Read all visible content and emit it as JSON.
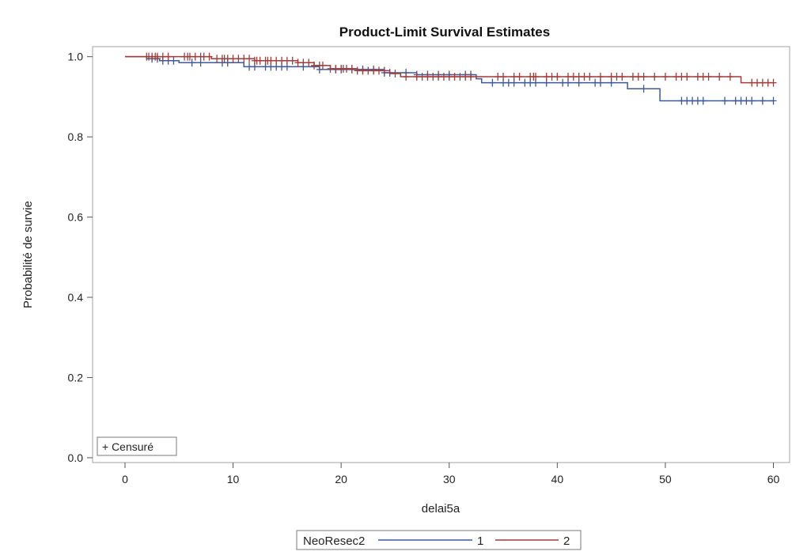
{
  "chart_data": {
    "type": "line",
    "title": "Product-Limit Survival Estimates",
    "xlabel": "delai5a",
    "ylabel": "Probabilité de survie",
    "xlim": [
      -3,
      61.5
    ],
    "ylim": [
      -0.012,
      1.025
    ],
    "x_ticks": [
      "0",
      "10",
      "20",
      "30",
      "40",
      "50",
      "60"
    ],
    "y_ticks": [
      "0.0",
      "0.2",
      "0.4",
      "0.6",
      "0.8",
      "1.0"
    ],
    "censored_legend": "+ Censuré",
    "legend_title": "NeoResec2",
    "legend_placement": "bottom",
    "series": [
      {
        "name": "1",
        "color": "#3c5a9a",
        "steps": [
          [
            0,
            1.0
          ],
          [
            2.0,
            0.995
          ],
          [
            3.2,
            0.99
          ],
          [
            5.0,
            0.985
          ],
          [
            11.0,
            0.975
          ],
          [
            18.0,
            0.968
          ],
          [
            24.0,
            0.96
          ],
          [
            27.0,
            0.955
          ],
          [
            32.5,
            0.945
          ],
          [
            33.0,
            0.935
          ],
          [
            46.5,
            0.92
          ],
          [
            49.5,
            0.89
          ],
          [
            60,
            0.89
          ]
        ],
        "censored": [
          2.5,
          3.0,
          3.5,
          4.0,
          4.5,
          6.2,
          7.0,
          9.0,
          9.5,
          11.5,
          12.0,
          13.0,
          13.5,
          14.0,
          14.5,
          15.0,
          16.5,
          18.0,
          19.5,
          20.0,
          21.0,
          22.0,
          23.0,
          24.0,
          24.5,
          26.0,
          27.0,
          28.0,
          29.0,
          30.0,
          31.5,
          32.0,
          34.0,
          35.0,
          35.5,
          36.0,
          37.0,
          37.5,
          38.0,
          39.0,
          40.5,
          41.0,
          42.0,
          43.5,
          44.0,
          45.0,
          48.0,
          51.5,
          52.0,
          52.5,
          53.0,
          53.5,
          55.5,
          56.5,
          57.0,
          57.5,
          58.0,
          59.0,
          60.0
        ]
      },
      {
        "name": "2",
        "color": "#a13c38",
        "steps": [
          [
            0,
            1.0
          ],
          [
            8.0,
            0.995
          ],
          [
            12.0,
            0.99
          ],
          [
            16.0,
            0.985
          ],
          [
            17.5,
            0.978
          ],
          [
            19.0,
            0.97
          ],
          [
            21.5,
            0.965
          ],
          [
            24.5,
            0.958
          ],
          [
            25.5,
            0.95
          ],
          [
            57.0,
            0.935
          ],
          [
            60,
            0.935
          ]
        ],
        "censored": [
          2.0,
          2.2,
          2.5,
          2.8,
          3.0,
          3.5,
          4.0,
          5.5,
          5.8,
          6.0,
          6.5,
          7.0,
          7.3,
          7.8,
          8.5,
          9.0,
          9.2,
          9.5,
          10.0,
          10.5,
          11.0,
          11.5,
          12.0,
          12.2,
          12.5,
          13.0,
          13.2,
          13.5,
          14.0,
          14.5,
          15.0,
          15.5,
          16.0,
          16.5,
          17.0,
          17.5,
          18.0,
          18.3,
          19.0,
          19.5,
          20.0,
          20.2,
          20.5,
          21.0,
          21.5,
          22.0,
          22.5,
          23.0,
          23.5,
          24.0,
          25.0,
          26.0,
          27.0,
          27.5,
          28.0,
          28.5,
          29.0,
          29.5,
          30.0,
          30.5,
          31.0,
          31.5,
          32.0,
          34.5,
          35.0,
          36.0,
          36.5,
          37.5,
          37.8,
          38.0,
          39.0,
          39.5,
          40.0,
          41.0,
          41.5,
          42.0,
          42.5,
          43.0,
          44.0,
          45.0,
          45.5,
          46.0,
          47.0,
          47.5,
          48.0,
          49.0,
          50.0,
          51.0,
          51.5,
          52.0,
          53.0,
          53.5,
          54.0,
          55.0,
          56.0,
          58.0,
          58.5,
          59.0,
          59.5,
          60.0
        ]
      }
    ]
  }
}
